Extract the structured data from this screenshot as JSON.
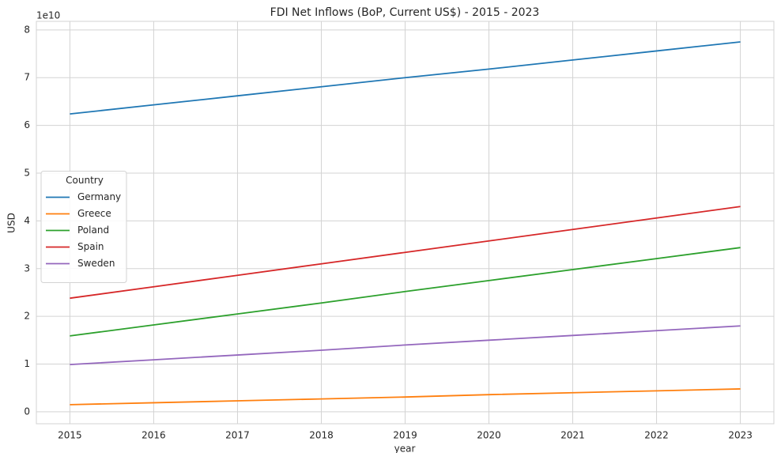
{
  "chart_data": {
    "type": "line",
    "title": "FDI Net Inflows (BoP, Current US$) - 2015 - 2023",
    "x_label": "year",
    "y_label": "USD",
    "y_offset_label": "1e10",
    "x": [
      2015,
      2016,
      2017,
      2018,
      2019,
      2020,
      2021,
      2022,
      2023
    ],
    "series": [
      {
        "name": "Germany",
        "color": "#1f77b4",
        "values": [
          6.24,
          6.43,
          6.62,
          6.81,
          7.0,
          7.18,
          7.37,
          7.56,
          7.75
        ]
      },
      {
        "name": "Greece",
        "color": "#ff7f0e",
        "values": [
          0.15,
          0.19,
          0.23,
          0.27,
          0.31,
          0.36,
          0.4,
          0.44,
          0.48
        ]
      },
      {
        "name": "Poland",
        "color": "#2ca02c",
        "values": [
          1.59,
          1.82,
          2.05,
          2.28,
          2.52,
          2.75,
          2.98,
          3.21,
          3.44
        ]
      },
      {
        "name": "Spain",
        "color": "#d62728",
        "values": [
          2.38,
          2.62,
          2.86,
          3.1,
          3.34,
          3.58,
          3.82,
          4.06,
          4.3
        ]
      },
      {
        "name": "Sweden",
        "color": "#9467bd",
        "values": [
          0.99,
          1.09,
          1.19,
          1.29,
          1.4,
          1.5,
          1.6,
          1.7,
          1.8
        ]
      }
    ],
    "legend_title": "Country",
    "legend": "center left",
    "xlim": [
      2014.6,
      2023.4
    ],
    "xticks": [
      2015,
      2016,
      2017,
      2018,
      2019,
      2020,
      2021,
      2022,
      2023
    ],
    "ylim": [
      -0.25,
      8.18
    ],
    "yticks": [
      0,
      1,
      2,
      3,
      4,
      5,
      6,
      7,
      8
    ],
    "grid": true
  }
}
